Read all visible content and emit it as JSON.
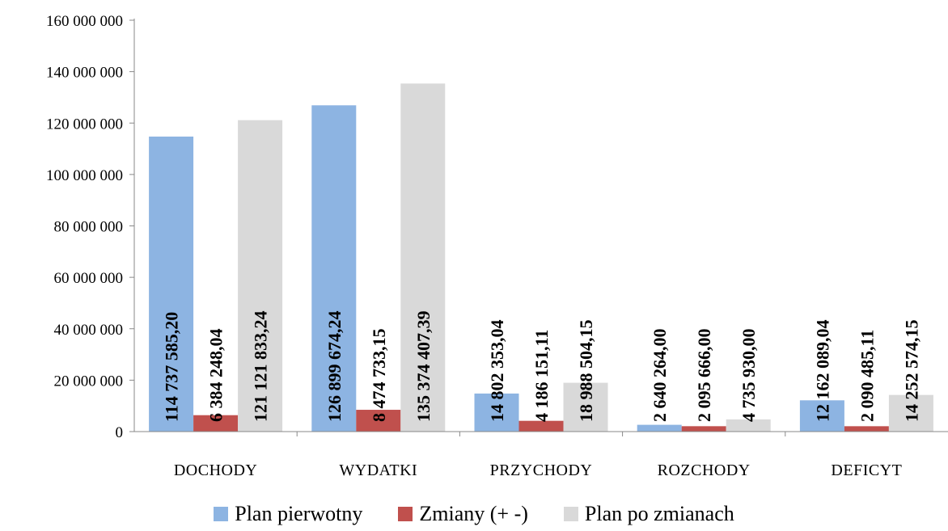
{
  "chart_data": {
    "type": "bar",
    "title": "",
    "xlabel": "",
    "ylabel": "",
    "categories": [
      "DOCHODY",
      "WYDATKI",
      "PRZYCHODY",
      "ROZCHODY",
      "DEFICYT"
    ],
    "ylim": [
      0,
      160000000
    ],
    "yticks": [
      0,
      20000000,
      40000000,
      60000000,
      80000000,
      100000000,
      120000000,
      140000000,
      160000000
    ],
    "ytick_labels": [
      "0",
      "20 000 000",
      "40 000 000",
      "60 000 000",
      "80 000 000",
      "100 000 000",
      "120 000 000",
      "140 000 000",
      "160 000 000"
    ],
    "grid": false,
    "legend_position": "bottom",
    "series": [
      {
        "name": "Plan pierwotny",
        "color": "#8db4e2",
        "values": [
          114737585.2,
          126899674.24,
          14802353.04,
          2640264.0,
          12162089.04
        ],
        "labels": [
          "114 737 585,20",
          "126 899 674,24",
          "14 802 353,04",
          "2 640 264,00",
          "12 162 089,04"
        ]
      },
      {
        "name": "Zmiany (+ -)",
        "color": "#c0504d",
        "values": [
          6384248.04,
          8474733.15,
          4186151.11,
          2095666.0,
          2090485.11
        ],
        "labels": [
          "6 384 248,04",
          "8 474 733,15",
          "4 186 151,11",
          "2 095 666,00",
          "2 090 485,11"
        ]
      },
      {
        "name": "Plan po zmianach",
        "color": "#d9d9d9",
        "values": [
          121121833.24,
          135374407.39,
          18988504.15,
          4735930.0,
          14252574.15
        ],
        "labels": [
          "121 121 833,24",
          "135 374 407,39",
          "18 988 504,15",
          "4 735 930,00",
          "14 252 574,15"
        ]
      }
    ]
  }
}
